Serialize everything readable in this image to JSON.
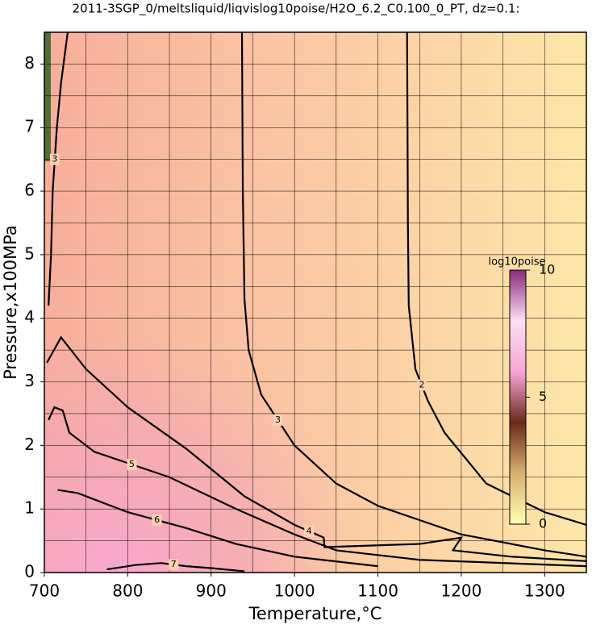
{
  "chart_data": {
    "type": "contour",
    "title": "2011-3SGP_0/meltsliquid/liqvislog10poise/H2O_6.2_C0.100_0_PT, dz=0.1:",
    "xlabel": "Temperature,°C",
    "ylabel": "Pressure,x100MPa",
    "xlim": [
      700,
      1350
    ],
    "ylim": [
      0,
      8.5
    ],
    "xticks": [
      700,
      800,
      900,
      1000,
      1100,
      1200,
      1300
    ],
    "yticks": [
      0,
      1,
      2,
      3,
      4,
      5,
      6,
      7,
      8
    ],
    "xminorticks": [
      750,
      850,
      950,
      1050,
      1150,
      1250
    ],
    "yminorticks": [
      0.5,
      1.5,
      2.5,
      3.5,
      4.5,
      5.5,
      6.5,
      7.5
    ],
    "grid": true,
    "line_color": "#000000",
    "contours": [
      {
        "level": 2,
        "x": [
          1135,
          1136,
          1137,
          1145,
          1160,
          1180,
          1230,
          1300,
          1350
        ],
        "y": [
          8.5,
          5.5,
          4.2,
          3.2,
          2.7,
          2.2,
          1.4,
          0.95,
          0.75
        ]
      },
      {
        "level": 3,
        "x": [
          937,
          938,
          940,
          945,
          960,
          1000,
          1050,
          1100,
          1200,
          1300,
          1350
        ],
        "y": [
          8.5,
          6.0,
          4.3,
          3.5,
          2.8,
          2.0,
          1.4,
          1.05,
          0.6,
          0.35,
          0.25
        ]
      },
      {
        "level": 3,
        "x": [
          705,
          708,
          710,
          715,
          720,
          728
        ],
        "y": [
          4.2,
          5.0,
          6.0,
          7.0,
          7.7,
          8.5
        ]
      },
      {
        "level": 4,
        "x": [
          703,
          720,
          750,
          800,
          870,
          940,
          1000,
          1035,
          1036,
          1150,
          1200,
          1190,
          1260,
          1350
        ],
        "y": [
          3.3,
          3.7,
          3.2,
          2.6,
          1.95,
          1.2,
          0.75,
          0.55,
          0.4,
          0.45,
          0.55,
          0.35,
          0.25,
          0.18
        ]
      },
      {
        "level": 5,
        "x": [
          705,
          712,
          722,
          730,
          760,
          850,
          930,
          1000,
          1050,
          1150,
          1350
        ],
        "y": [
          2.4,
          2.6,
          2.55,
          2.2,
          1.9,
          1.5,
          1.0,
          0.6,
          0.35,
          0.2,
          0.1
        ]
      },
      {
        "level": 6,
        "x": [
          716,
          740,
          800,
          870,
          930,
          1000,
          1100
        ],
        "y": [
          1.3,
          1.25,
          0.95,
          0.7,
          0.45,
          0.25,
          0.1
        ]
      },
      {
        "level": 7,
        "x": [
          775,
          810,
          840,
          870,
          900,
          940
        ],
        "y": [
          0.05,
          0.12,
          0.15,
          0.1,
          0.07,
          0.02
        ]
      }
    ],
    "colorbar": {
      "label": "log10poise",
      "lim": [
        0,
        10
      ],
      "ticks": [
        0,
        5,
        10
      ],
      "colors": [
        "#ffffb0",
        "#d8b070",
        "#6a2a1a",
        "#f6a6d6",
        "#fbe0f4",
        "#8a2a7a"
      ]
    }
  }
}
